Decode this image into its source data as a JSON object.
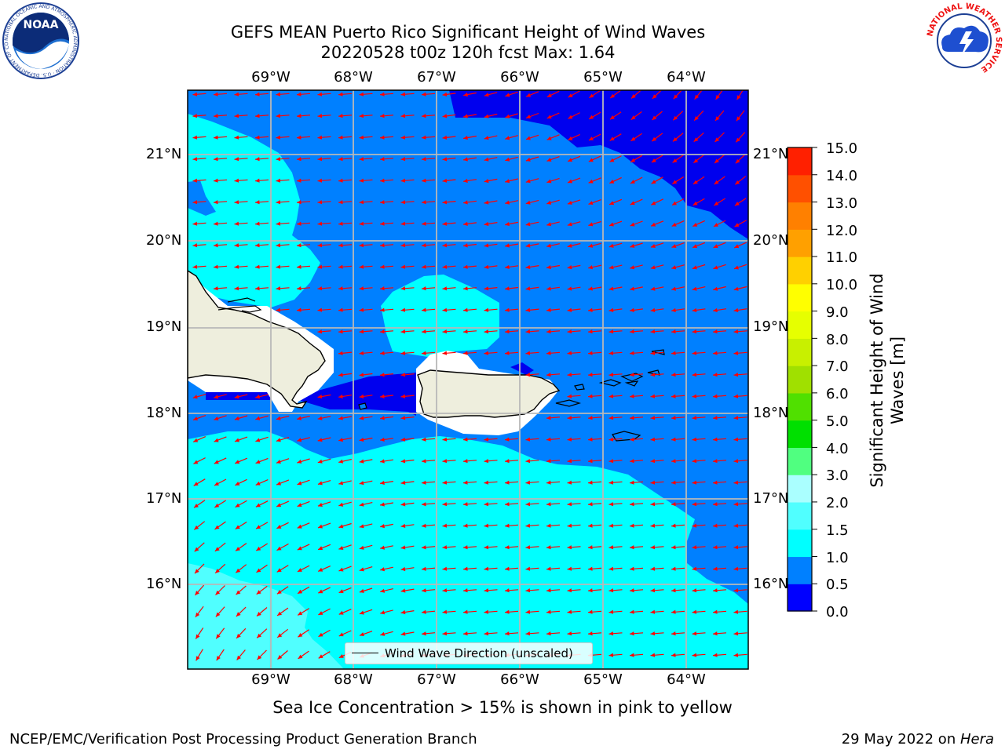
{
  "header": {
    "title_line1": "GEFS MEAN Puerto Rico Significant Height of Wind Waves",
    "title_line2": "20220528 t00z 120h fcst   Max: 1.64"
  },
  "logos": {
    "left": "NOAA",
    "left_ring_text": "NATIONAL OCEANIC AND ATMOSPHERIC ADMINISTRATION · U.S. DEPARTMENT OF COMMERCE",
    "right_ring_text": "NATIONAL WEATHER SERVICE"
  },
  "map": {
    "lon_labels": [
      "69°W",
      "68°W",
      "67°W",
      "66°W",
      "65°W",
      "64°W"
    ],
    "lat_labels": [
      "21°N",
      "20°N",
      "19°N",
      "18°N",
      "17°N",
      "16°N"
    ],
    "colors": {
      "dark_blue": "#0000ee",
      "blue": "#0080ff",
      "cyan": "#00ffff",
      "light_cyan": "#50ffff",
      "land": "#eeeedd",
      "arrow": "#ff0000"
    },
    "legend_label": "Wind Wave Direction (unscaled)"
  },
  "colorbar": {
    "title_line1": "Significant Height of Wind",
    "title_line2": "Waves [m]",
    "ticks": [
      "15.0",
      "14.0",
      "13.0",
      "12.0",
      "11.0",
      "10.0",
      "9.0",
      "8.0",
      "7.0",
      "6.0",
      "5.0",
      "4.0",
      "3.0",
      "2.0",
      "1.5",
      "1.0",
      "0.5",
      "0.0"
    ],
    "levels": [
      0.0,
      0.5,
      1.0,
      1.5,
      2.0,
      3.0,
      4.0,
      5.0,
      6.0,
      7.0,
      8.0,
      9.0,
      10.0,
      11.0,
      12.0,
      13.0,
      14.0,
      15.0
    ],
    "colors": [
      "#0000ff",
      "#0080ff",
      "#00ffff",
      "#50ffff",
      "#aaffff",
      "#50ff80",
      "#00e000",
      "#50e000",
      "#a0e000",
      "#c8f000",
      "#e6ff00",
      "#ffff00",
      "#ffd000",
      "#ffa000",
      "#ff8000",
      "#ff5000",
      "#ff2000"
    ]
  },
  "caption": "Sea Ice Concentration > 15% is shown in pink to yellow",
  "footer": {
    "left": "NCEP/EMC/Verification Post Processing Product Generation Branch",
    "right_date": "29 May 2022 on ",
    "right_host": "Hera"
  }
}
